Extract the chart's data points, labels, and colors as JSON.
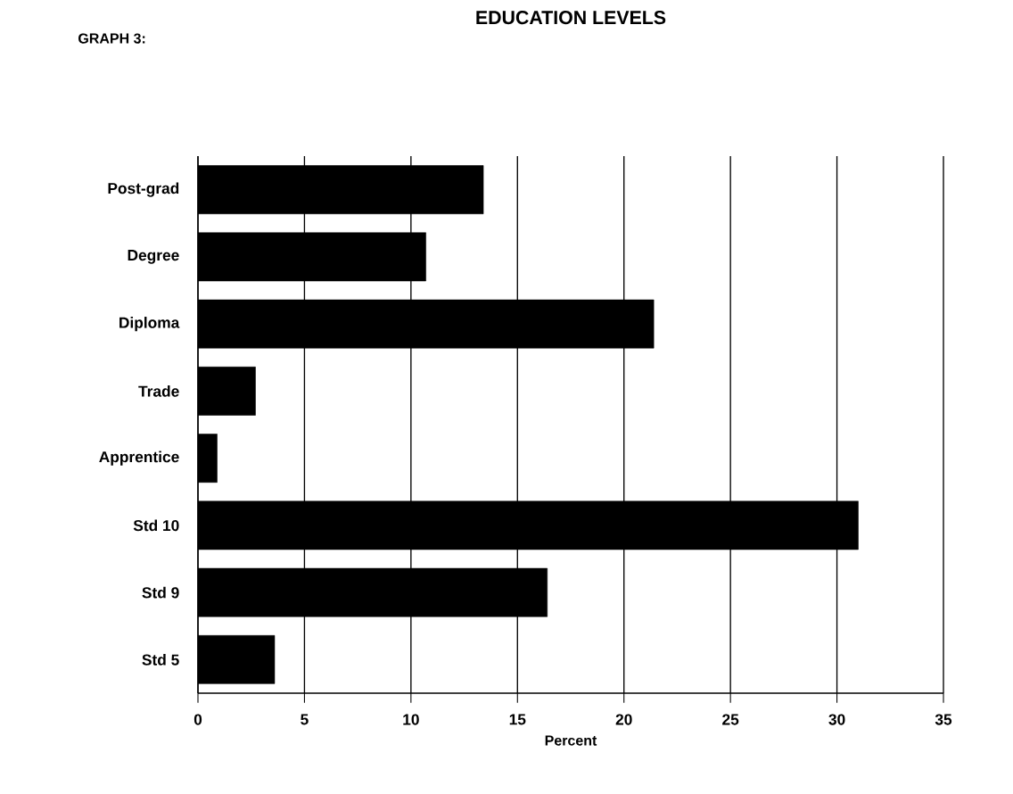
{
  "chart_data": {
    "type": "bar",
    "orientation": "horizontal",
    "title": "EDUCATION LEVELS",
    "annotations": [
      "GRAPH 3:"
    ],
    "xlabel": "Percent",
    "categories": [
      "Post-grad",
      "Degree",
      "Diploma",
      "Trade",
      "Apprentice",
      "Std 10",
      "Std 9",
      "Std 5"
    ],
    "values": [
      13.4,
      10.7,
      21.4,
      2.7,
      0.9,
      31.0,
      16.4,
      3.6
    ],
    "color": "#000000",
    "xlim": [
      0,
      35
    ],
    "xticks": [
      0,
      5,
      10,
      15,
      20,
      25,
      30,
      35
    ],
    "grid": "x"
  }
}
